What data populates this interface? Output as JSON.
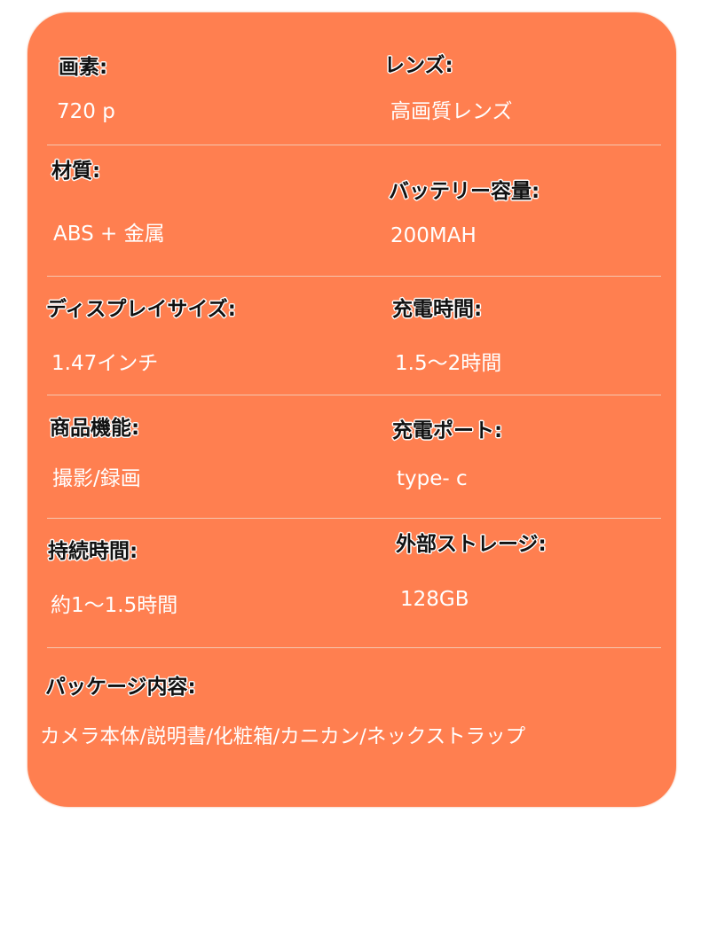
{
  "colors": {
    "card": "#FF7F50",
    "label": "#111111",
    "value": "#FFFFFF"
  },
  "specs": [
    {
      "label": "画素:",
      "value": "720 p"
    },
    {
      "label": "レンズ:",
      "value": "高画質レンズ"
    },
    {
      "label": "材質:",
      "value": "ABS + 金属"
    },
    {
      "label": "バッテリー容量:",
      "value": "200MAH"
    },
    {
      "label": "ディスプレイサイズ:",
      "value": "1.47インチ"
    },
    {
      "label": "充電時間:",
      "value": "1.5～2時間"
    },
    {
      "label": "商品機能:",
      "value": "撮影/録画"
    },
    {
      "label": "充電ポート:",
      "value": "type- c"
    },
    {
      "label": "持続時間:",
      "value": "約1～1.5時間"
    },
    {
      "label": "外部ストレージ:",
      "value": "128GB"
    },
    {
      "label": "パッケージ内容:",
      "value": "カメラ本体/説明書/化粧箱/カニカン/ネックストラップ"
    }
  ]
}
